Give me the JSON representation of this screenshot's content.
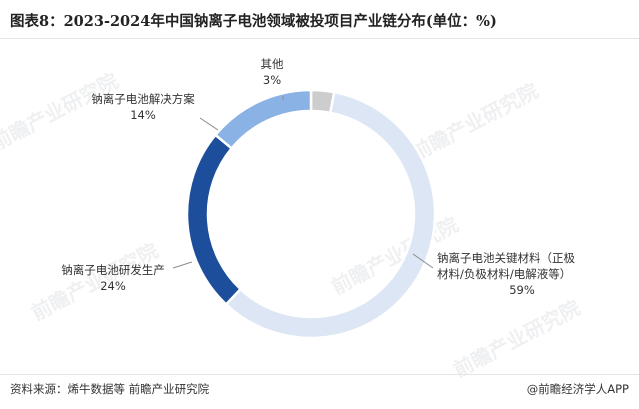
{
  "title": "图表8：2023-2024年中国钠离子电池领域被投项目产业链分布(单位：%)",
  "source": "资料来源：烯牛数据等 前瞻产业研究院",
  "credit": "@前瞻经济学人APP",
  "watermark": "前瞻产业研究院",
  "chart_data": {
    "type": "pie",
    "style": "donut",
    "unit": "%",
    "slices": [
      {
        "label": "其他",
        "value": 3,
        "value_label": "3%",
        "color": "#cdcdcd"
      },
      {
        "label": "钠离子电池关键材料（正极材料/负极材料/电解液等）",
        "label_lines": [
          "钠离子电池关键材料（正极",
          "材料/负极材料/电解液等）"
        ],
        "value": 59,
        "value_label": "59%",
        "color": "#dce6f5"
      },
      {
        "label": "钠离子电池研发生产",
        "value": 24,
        "value_label": "24%",
        "color": "#1c4e9c"
      },
      {
        "label": "钠离子电池解决方案",
        "value": 14,
        "value_label": "14%",
        "color": "#8ab2e4"
      }
    ]
  }
}
